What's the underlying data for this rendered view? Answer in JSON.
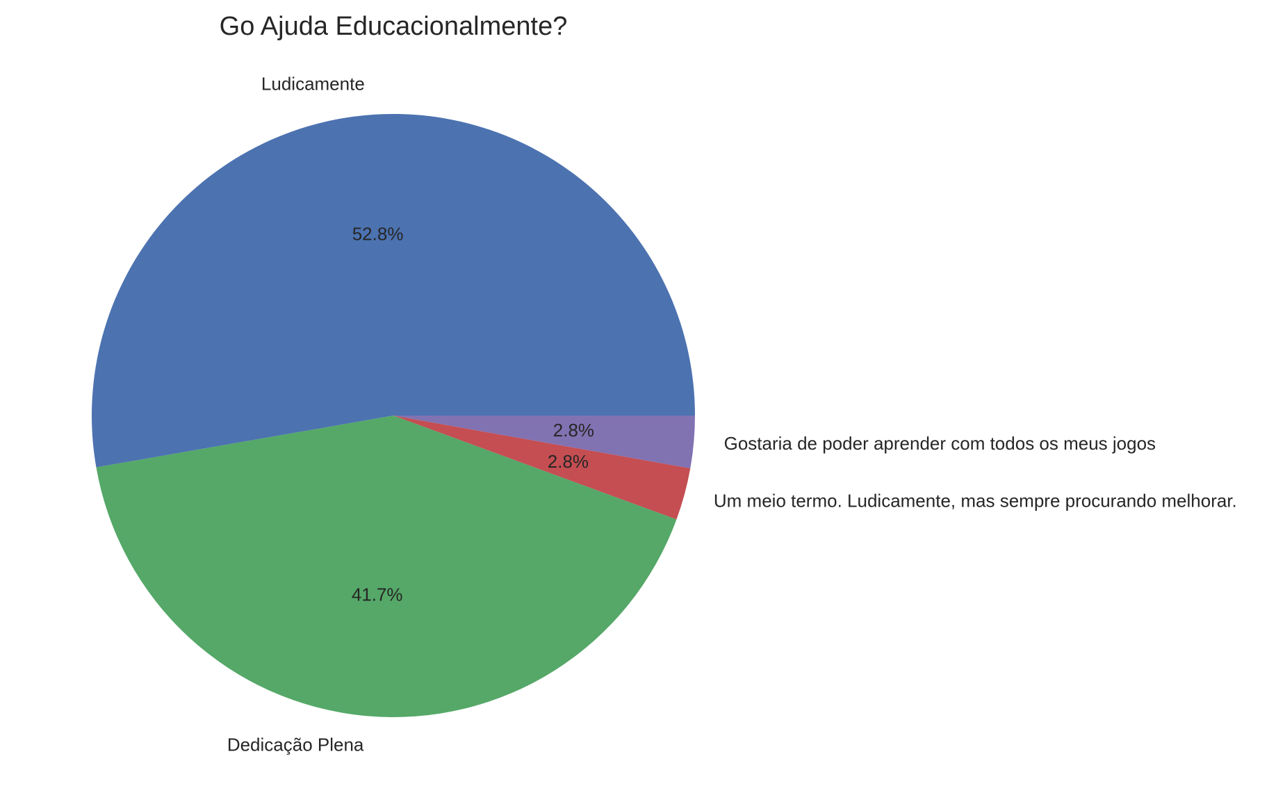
{
  "chart_data": {
    "type": "pie",
    "title": "Go Ajuda Educacionalmente?",
    "slices": [
      {
        "label": "Ludicamente",
        "value": 52.8,
        "pct_label": "52.8%",
        "color": "#4c72b0"
      },
      {
        "label": "Dedicação Plena",
        "value": 41.7,
        "pct_label": "41.7%",
        "color": "#55a868"
      },
      {
        "label": "Um meio termo. Ludicamente, mas sempre procurando melhorar.",
        "value": 2.8,
        "pct_label": "2.8%",
        "color": "#c44e52"
      },
      {
        "label": "Gostaria de poder aprender com todos os meus jogos",
        "value": 2.8,
        "pct_label": "2.8%",
        "color": "#8172b2"
      }
    ],
    "start_angle": "0 degrees (3 o'clock)",
    "direction": "counter-clockwise"
  }
}
